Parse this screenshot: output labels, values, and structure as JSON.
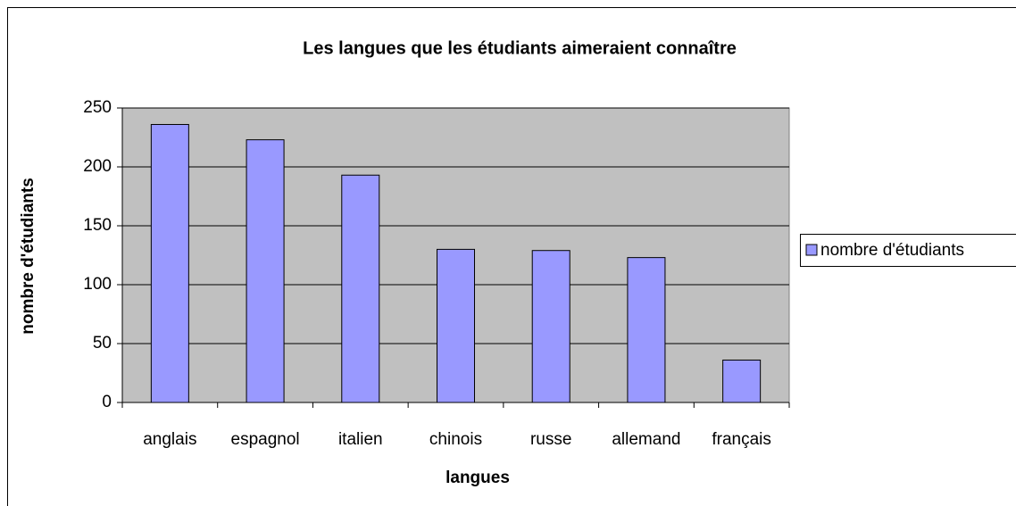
{
  "chart_data": {
    "type": "bar",
    "title": "Les langues que les étudiants aimeraient connaître",
    "x_label": "langues",
    "y_label": "nombre d'étudiants",
    "categories": [
      "anglais",
      "espagnol",
      "italien",
      "chinois",
      "russe",
      "allemand",
      "français"
    ],
    "series": [
      {
        "name": "nombre d'étudiants",
        "color": "#9999ff",
        "values": [
          236,
          223,
          193,
          130,
          129,
          123,
          36
        ]
      }
    ],
    "ylim": [
      0,
      250
    ],
    "yticks": [
      0,
      50,
      100,
      150,
      200,
      250
    ],
    "grid": true,
    "legend": "right"
  }
}
